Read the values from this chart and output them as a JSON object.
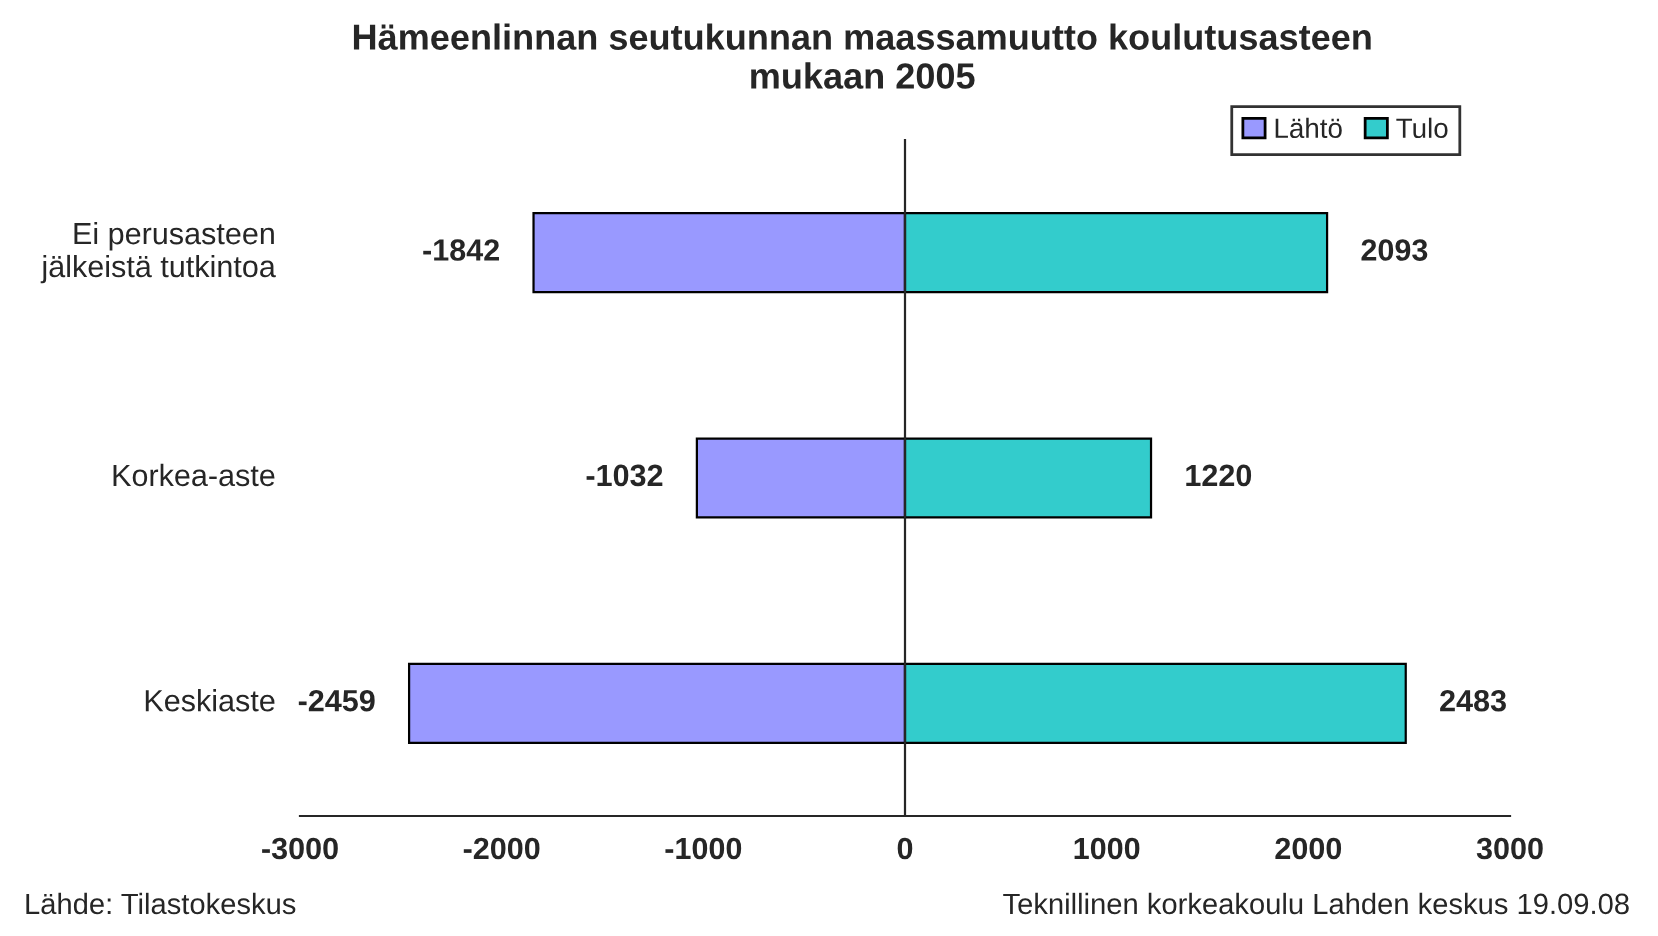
{
  "chart_data": {
    "type": "bar",
    "orientation": "horizontal",
    "stacked": true,
    "title": "Hämeenlinnan seutukunnan maassamuutto koulutusasteen\nmukaan 2005",
    "categories": [
      "Ei perusasteen\njälkeistä tutkintoa",
      "Korkea-aste",
      "Keskiaste"
    ],
    "series": [
      {
        "name": "Lähtö",
        "color": "#9999ff",
        "values": [
          -1842,
          -1032,
          -2459
        ]
      },
      {
        "name": "Tulo",
        "color": "#33cccc",
        "values": [
          2093,
          1220,
          2483
        ]
      }
    ],
    "xlim": [
      -3000,
      3000
    ],
    "xticks": [
      -3000,
      -2000,
      -1000,
      0,
      1000,
      2000,
      3000
    ],
    "data_labels": true,
    "legend": "top right",
    "annotations": [
      "Lähde: Tilastokeskus",
      "Teknillinen korkeakoulu Lahden keskus 19.09.08"
    ]
  }
}
